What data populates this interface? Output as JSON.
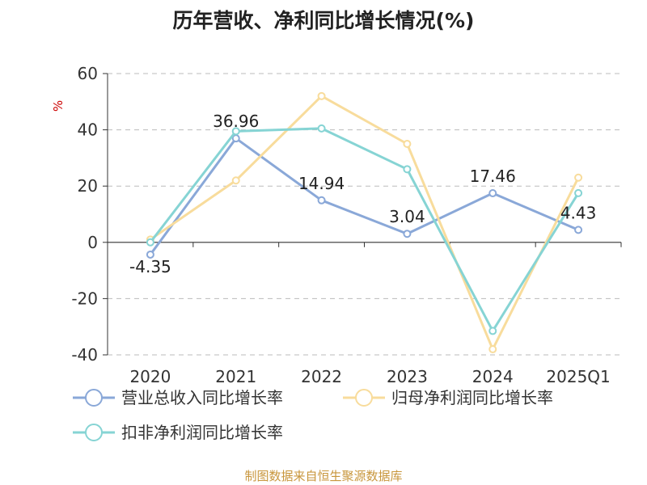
{
  "title": "历年营收、净利同比增长情况(%)",
  "footer": "制图数据来自恒生聚源数据库",
  "chart_data": {
    "type": "line",
    "title": "历年营收、净利同比增长情况(%)",
    "ylabel": "%",
    "categories": [
      "2020",
      "2021",
      "2022",
      "2023",
      "2024",
      "2025Q1"
    ],
    "ylim": [
      -40,
      60
    ],
    "yticks": [
      -40,
      -20,
      0,
      20,
      40,
      60
    ],
    "grid": true,
    "legend_position": "bottom",
    "series": [
      {
        "name": "营业总收入同比增长率",
        "values": [
          -4.35,
          36.96,
          14.94,
          3.04,
          17.46,
          4.43
        ],
        "color": "#8aa8d8",
        "labeled": true
      },
      {
        "name": "归母净利润同比增长率",
        "values": [
          1,
          22,
          52,
          35,
          -38,
          23
        ],
        "color": "#f8dc9c",
        "labeled": false
      },
      {
        "name": "扣非净利润同比增长率",
        "values": [
          0,
          39.5,
          40.5,
          26,
          -31.5,
          17.5
        ],
        "color": "#86d4d4",
        "labeled": false
      }
    ],
    "data_labels": [
      "-4.35",
      "36.96",
      "14.94",
      "3.04",
      "17.46",
      "4.43"
    ]
  },
  "colors": {
    "axis": "#333333",
    "grid": "#bbbbbb",
    "ylabel": "#cc0000",
    "footer": "#c8963c"
  }
}
